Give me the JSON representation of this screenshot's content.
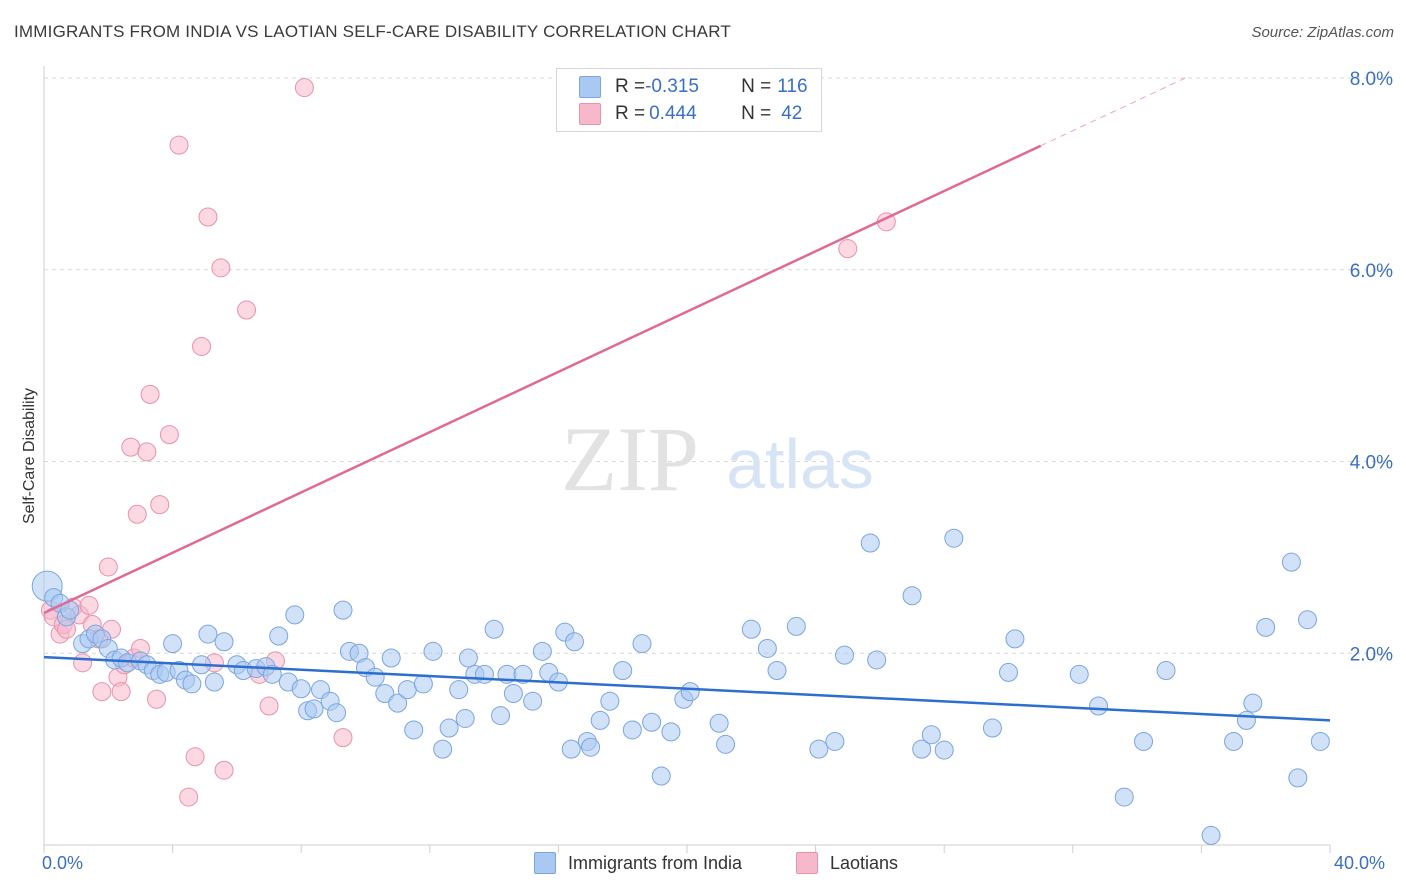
{
  "title": "IMMIGRANTS FROM INDIA VS LAOTIAN SELF-CARE DISABILITY CORRELATION CHART",
  "source": "Source: ZipAtlas.com",
  "watermark": {
    "zip": "ZIP",
    "atlas": "atlas"
  },
  "legend": {
    "india": {
      "r_label": "R = ",
      "r_value": "-0.315",
      "n_label": "N = ",
      "n_value": "116"
    },
    "laos": {
      "r_label": "R = ",
      "r_value": "0.444",
      "n_label": "N = ",
      "n_value": "42"
    }
  },
  "colors": {
    "india_fill": "#a9c8f2",
    "india_stroke": "#7aa6e0",
    "india_line": "#2c6fcf",
    "laos_fill": "#f7b8cb",
    "laos_stroke": "#e892ad",
    "laos_line": "#e06a95",
    "grid": "#d9d9d9",
    "tick_text": "#3a6fc6"
  },
  "chart_data": {
    "type": "scatter",
    "title": "IMMIGRANTS FROM INDIA VS LAOTIAN SELF-CARE DISABILITY CORRELATION CHART",
    "xlabel": "",
    "ylabel": "Self-Care Disability",
    "xlim": [
      0,
      40
    ],
    "ylim": [
      0,
      8
    ],
    "x_tick_labels": [
      "0.0%",
      "40.0%"
    ],
    "y_ticks": [
      2,
      4,
      6,
      8
    ],
    "y_tick_labels": [
      "2.0%",
      "4.0%",
      "6.0%",
      "8.0%"
    ],
    "grid": true,
    "legend_position": "top-center",
    "series": [
      {
        "name": "Immigrants from India",
        "r": -0.315,
        "n": 116,
        "trend": {
          "x0": 0,
          "y0": 1.96,
          "x1": 40,
          "y1": 1.3,
          "dash_from": null
        },
        "points": [
          [
            0.1,
            2.7
          ],
          [
            0.3,
            2.58
          ],
          [
            0.5,
            2.52
          ],
          [
            0.7,
            2.38
          ],
          [
            0.8,
            2.45
          ],
          [
            1.2,
            2.1
          ],
          [
            1.4,
            2.15
          ],
          [
            1.6,
            2.2
          ],
          [
            1.8,
            2.15
          ],
          [
            2.0,
            2.05
          ],
          [
            2.2,
            1.93
          ],
          [
            2.4,
            1.95
          ],
          [
            2.6,
            1.9
          ],
          [
            3.0,
            1.92
          ],
          [
            3.2,
            1.88
          ],
          [
            3.4,
            1.82
          ],
          [
            3.6,
            1.78
          ],
          [
            3.8,
            1.8
          ],
          [
            4.0,
            2.1
          ],
          [
            4.2,
            1.82
          ],
          [
            4.4,
            1.72
          ],
          [
            4.6,
            1.68
          ],
          [
            4.9,
            1.88
          ],
          [
            5.1,
            2.2
          ],
          [
            5.3,
            1.7
          ],
          [
            5.6,
            2.12
          ],
          [
            6.0,
            1.88
          ],
          [
            6.2,
            1.82
          ],
          [
            6.6,
            1.84
          ],
          [
            6.9,
            1.86
          ],
          [
            7.1,
            1.78
          ],
          [
            7.3,
            2.18
          ],
          [
            7.6,
            1.7
          ],
          [
            7.8,
            2.4
          ],
          [
            8.0,
            1.63
          ],
          [
            8.2,
            1.4
          ],
          [
            8.4,
            1.42
          ],
          [
            8.6,
            1.62
          ],
          [
            8.9,
            1.5
          ],
          [
            9.1,
            1.38
          ],
          [
            9.3,
            2.45
          ],
          [
            9.5,
            2.02
          ],
          [
            9.8,
            2.0
          ],
          [
            10.0,
            1.85
          ],
          [
            10.3,
            1.75
          ],
          [
            10.6,
            1.58
          ],
          [
            10.8,
            1.95
          ],
          [
            11.0,
            1.48
          ],
          [
            11.3,
            1.62
          ],
          [
            11.5,
            1.2
          ],
          [
            11.8,
            1.68
          ],
          [
            12.1,
            2.02
          ],
          [
            12.4,
            1.0
          ],
          [
            12.6,
            1.22
          ],
          [
            12.9,
            1.62
          ],
          [
            13.1,
            1.32
          ],
          [
            13.4,
            1.78
          ],
          [
            13.7,
            1.78
          ],
          [
            14.0,
            2.25
          ],
          [
            14.2,
            1.35
          ],
          [
            14.4,
            1.78
          ],
          [
            14.6,
            1.58
          ],
          [
            14.9,
            1.78
          ],
          [
            15.2,
            1.5
          ],
          [
            15.5,
            2.02
          ],
          [
            15.7,
            1.8
          ],
          [
            16.0,
            1.7
          ],
          [
            16.2,
            2.22
          ],
          [
            16.5,
            2.12
          ],
          [
            16.9,
            1.08
          ],
          [
            17.0,
            1.02
          ],
          [
            17.3,
            1.3
          ],
          [
            17.6,
            1.5
          ],
          [
            18.0,
            1.82
          ],
          [
            18.3,
            1.2
          ],
          [
            18.6,
            2.1
          ],
          [
            18.9,
            1.28
          ],
          [
            19.2,
            0.72
          ],
          [
            19.5,
            1.18
          ],
          [
            19.9,
            1.52
          ],
          [
            20.1,
            1.6
          ],
          [
            21.0,
            1.27
          ],
          [
            21.2,
            1.05
          ],
          [
            22.0,
            2.25
          ],
          [
            22.5,
            2.05
          ],
          [
            22.8,
            1.82
          ],
          [
            23.4,
            2.28
          ],
          [
            24.1,
            1.0
          ],
          [
            24.6,
            1.08
          ],
          [
            24.9,
            1.98
          ],
          [
            25.7,
            3.15
          ],
          [
            25.9,
            1.93
          ],
          [
            27.0,
            2.6
          ],
          [
            27.3,
            1.0
          ],
          [
            27.6,
            1.15
          ],
          [
            28.0,
            0.99
          ],
          [
            28.3,
            3.2
          ],
          [
            29.5,
            1.22
          ],
          [
            30.2,
            2.15
          ],
          [
            30.0,
            1.8
          ],
          [
            32.2,
            1.78
          ],
          [
            32.8,
            1.45
          ],
          [
            33.6,
            0.5
          ],
          [
            34.2,
            1.08
          ],
          [
            34.9,
            1.82
          ],
          [
            36.3,
            0.1
          ],
          [
            37.0,
            1.08
          ],
          [
            37.4,
            1.3
          ],
          [
            37.6,
            1.48
          ],
          [
            38.0,
            2.27
          ],
          [
            38.8,
            2.95
          ],
          [
            39.3,
            2.35
          ],
          [
            39.0,
            0.7
          ],
          [
            39.7,
            1.08
          ],
          [
            16.4,
            1.0
          ],
          [
            13.2,
            1.95
          ]
        ]
      },
      {
        "name": "Laotians",
        "r": 0.444,
        "n": 42,
        "trend": {
          "x0": 0,
          "y0": 2.42,
          "x1": 35.5,
          "y1": 8.0,
          "dash_from": 31.0
        },
        "points": [
          [
            0.2,
            2.45
          ],
          [
            0.3,
            2.38
          ],
          [
            0.5,
            2.2
          ],
          [
            0.6,
            2.3
          ],
          [
            0.7,
            2.25
          ],
          [
            0.9,
            2.48
          ],
          [
            1.1,
            2.4
          ],
          [
            1.2,
            1.9
          ],
          [
            1.4,
            2.5
          ],
          [
            1.5,
            2.3
          ],
          [
            1.7,
            2.15
          ],
          [
            1.8,
            1.6
          ],
          [
            2.0,
            2.9
          ],
          [
            2.1,
            2.25
          ],
          [
            2.3,
            1.75
          ],
          [
            2.4,
            1.6
          ],
          [
            2.5,
            1.88
          ],
          [
            2.7,
            4.15
          ],
          [
            2.8,
            1.95
          ],
          [
            2.9,
            3.45
          ],
          [
            3.0,
            2.05
          ],
          [
            3.2,
            4.1
          ],
          [
            3.3,
            4.7
          ],
          [
            3.5,
            1.52
          ],
          [
            3.6,
            3.55
          ],
          [
            3.9,
            4.28
          ],
          [
            4.2,
            7.3
          ],
          [
            4.5,
            0.5
          ],
          [
            4.7,
            0.92
          ],
          [
            4.9,
            5.2
          ],
          [
            5.1,
            6.55
          ],
          [
            5.3,
            1.9
          ],
          [
            5.5,
            6.02
          ],
          [
            5.6,
            0.78
          ],
          [
            6.3,
            5.58
          ],
          [
            6.7,
            1.78
          ],
          [
            7.0,
            1.45
          ],
          [
            7.2,
            1.92
          ],
          [
            8.1,
            7.9
          ],
          [
            9.3,
            1.12
          ],
          [
            25.0,
            6.22
          ],
          [
            26.2,
            6.5
          ]
        ]
      }
    ]
  },
  "bottom_legend": {
    "india": "Immigrants from India",
    "laos": "Laotians"
  }
}
